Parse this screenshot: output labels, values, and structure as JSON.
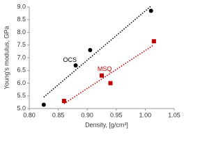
{
  "chart_data": {
    "type": "scatter",
    "x_label": "Density, [g/cm³]",
    "y_label": "Young's modulus, GPa",
    "xlim": [
      0.8,
      1.05
    ],
    "xticks": [
      {
        "value": 0.8,
        "label": "0.80"
      },
      {
        "value": 0.85,
        "label": "0.85"
      },
      {
        "value": 0.9,
        "label": "0.90"
      },
      {
        "value": 0.95,
        "label": "0.95"
      },
      {
        "value": 1.0,
        "label": "1.00"
      },
      {
        "value": 1.05,
        "label": "1.05"
      }
    ],
    "ylim": [
      5.0,
      9.0
    ],
    "yticks": [
      {
        "value": 5.0,
        "label": "5.0"
      },
      {
        "value": 5.5,
        "label": "5.5"
      },
      {
        "value": 6.0,
        "label": "6.0"
      },
      {
        "value": 6.5,
        "label": "6.5"
      },
      {
        "value": 7.0,
        "label": "7.0"
      },
      {
        "value": 7.5,
        "label": "7.5"
      },
      {
        "value": 8.0,
        "label": "8.0"
      },
      {
        "value": 8.5,
        "label": "8.5"
      },
      {
        "value": 9.0,
        "label": "9.0"
      }
    ],
    "trendline": true,
    "series": [
      {
        "name": "OCS",
        "color": "#000000",
        "marker": "circle",
        "x": [
          0.825,
          0.88,
          0.905,
          1.01
        ],
        "values": [
          5.15,
          6.7,
          7.3,
          8.85
        ]
      },
      {
        "name": "MSQ",
        "color": "#c00000",
        "marker": "square",
        "x": [
          0.86,
          0.925,
          0.94,
          1.015
        ],
        "values": [
          5.3,
          6.3,
          6.0,
          7.65
        ]
      }
    ]
  }
}
